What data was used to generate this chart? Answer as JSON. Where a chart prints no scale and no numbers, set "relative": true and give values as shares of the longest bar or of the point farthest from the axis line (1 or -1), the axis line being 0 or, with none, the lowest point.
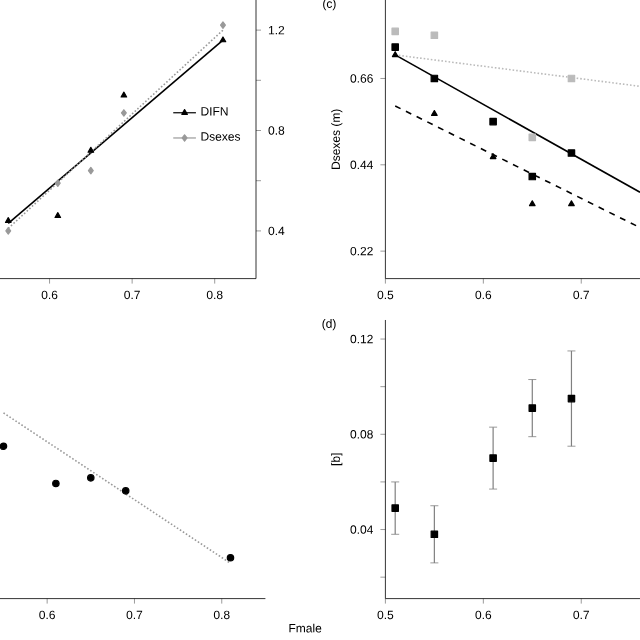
{
  "chart_data": [
    {
      "type": "scatter",
      "xlim": [
        0.54,
        0.85
      ],
      "xticks": [
        0.6,
        0.7,
        0.8
      ],
      "y2lim": [
        0.21,
        1.32
      ],
      "y2ticks": [
        0.4,
        {
          "value": 0.6,
          "label": null
        },
        0.8,
        {
          "value": 1.0,
          "label": null
        },
        1.2
      ],
      "legend": "right",
      "series": [
        {
          "name": "DIFN",
          "marker": "triangle",
          "color": "#000000",
          "axis": "y2",
          "x": [
            0.55,
            0.61,
            0.65,
            0.69,
            0.81
          ],
          "values": [
            0.44,
            0.46,
            0.72,
            0.94,
            1.16
          ]
        },
        {
          "name": "Dsexes",
          "marker": "diamond",
          "color": "#999999",
          "axis": "y2",
          "x": [
            0.55,
            0.61,
            0.65,
            0.69,
            0.81
          ],
          "values": [
            0.4,
            0.59,
            0.64,
            0.87,
            1.22
          ]
        },
        {
          "type": "line",
          "line_style": "solid",
          "color": "#000000",
          "axis": "y2",
          "x": [
            0.55,
            0.81
          ],
          "values": [
            0.43,
            1.16
          ]
        },
        {
          "type": "line",
          "line_style": "dotted",
          "color": "#999999",
          "axis": "y2",
          "x": [
            0.55,
            0.81
          ],
          "values": [
            0.41,
            1.2
          ]
        }
      ]
    },
    {
      "type": "scatter",
      "title": "(c)",
      "ylabel": "Dsexes (m)",
      "xlim": [
        0.5,
        0.76
      ],
      "xticks": [
        0.5,
        0.6,
        0.7
      ],
      "ylim": [
        0.15,
        0.86
      ],
      "yticks": [
        0.22,
        0.44,
        0.66
      ],
      "series": [
        {
          "marker": "square",
          "color": "#000000",
          "x": [
            0.51,
            0.55,
            0.61,
            0.65,
            0.69
          ],
          "values": [
            0.74,
            0.66,
            0.55,
            0.41,
            0.47
          ]
        },
        {
          "marker": "triangle",
          "color": "#000000",
          "x": [
            0.51,
            0.55,
            0.61,
            0.65,
            0.69
          ],
          "values": [
            0.72,
            0.57,
            0.46,
            0.34,
            0.34
          ]
        },
        {
          "marker": "square",
          "color": "#bbbbbb",
          "x": [
            0.51,
            0.55,
            0.65,
            0.69
          ],
          "values": [
            0.78,
            0.77,
            0.51,
            0.66
          ]
        },
        {
          "type": "line",
          "line_style": "solid",
          "color": "#000000",
          "x": [
            0.51,
            0.76
          ],
          "values": [
            0.72,
            0.37
          ]
        },
        {
          "type": "line",
          "line_style": "dashed",
          "color": "#000000",
          "x": [
            0.51,
            0.76
          ],
          "values": [
            0.59,
            0.28
          ]
        },
        {
          "type": "line",
          "line_style": "dotted",
          "color": "#bbbbbb",
          "x": [
            0.51,
            0.76
          ],
          "values": [
            0.72,
            0.64
          ]
        }
      ]
    },
    {
      "type": "scatter",
      "relative": true,
      "xlabel": "Fmale",
      "xlim": [
        0.546,
        0.85
      ],
      "xticks": [
        0.6,
        0.7,
        0.8
      ],
      "tick_labels": "x",
      "series": [
        {
          "marker": "circle",
          "color": "#000000",
          "x": [
            0.55,
            0.61,
            0.65,
            0.69,
            0.81
          ],
          "values": [
            0.82,
            0.62,
            0.65,
            0.58,
            0.22
          ]
        },
        {
          "type": "line",
          "line_style": "dotted",
          "color": "#999999",
          "x": [
            0.55,
            0.81
          ],
          "values": [
            1.0,
            0.19
          ]
        }
      ]
    },
    {
      "type": "scatter",
      "title": "(d)",
      "ylabel": "[b]",
      "xlim": [
        0.5,
        0.76
      ],
      "xticks": [
        0.5,
        0.6,
        0.7
      ],
      "ylim": [
        0.011,
        0.128
      ],
      "yticks": [
        {
          "value": 0.02,
          "label": null
        },
        0.04,
        {
          "value": 0.06,
          "label": null
        },
        0.08,
        {
          "value": 0.1,
          "label": null
        },
        0.12
      ],
      "series": [
        {
          "marker": "square",
          "color": "#000000",
          "x": [
            0.51,
            0.55,
            0.61,
            0.65,
            0.69
          ],
          "values": [
            0.049,
            0.038,
            0.07,
            0.091,
            0.095
          ],
          "errors": [
            [
              0.038,
              0.06
            ],
            [
              0.026,
              0.05
            ],
            [
              0.057,
              0.083
            ],
            [
              0.079,
              0.103
            ],
            [
              0.075,
              0.115
            ]
          ]
        }
      ]
    }
  ]
}
